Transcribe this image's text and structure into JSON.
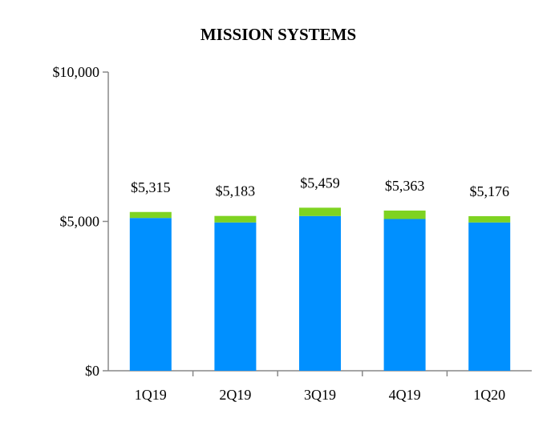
{
  "chart_data": {
    "type": "bar",
    "stacked": true,
    "title": "MISSION SYSTEMS",
    "xlabel": "",
    "ylabel": "",
    "categories": [
      "1Q19",
      "2Q19",
      "3Q19",
      "4Q19",
      "1Q20"
    ],
    "series": [
      {
        "color": "#0090ff",
        "values": [
          5115,
          4965,
          5180,
          5080,
          4965
        ]
      },
      {
        "color": "#7ed321",
        "values": [
          200,
          218,
          279,
          283,
          211
        ]
      }
    ],
    "totals": [
      5315,
      5183,
      5459,
      5363,
      5176
    ],
    "total_labels": [
      "$5,315",
      "$5,183",
      "$5,459",
      "$5,363",
      "$5,176"
    ],
    "ylim": [
      0,
      10000
    ],
    "yticks": [
      0,
      5000,
      10000
    ],
    "ytick_labels": [
      "$0",
      "$5,000",
      "$10,000"
    ],
    "grid": false,
    "legend": "none"
  }
}
